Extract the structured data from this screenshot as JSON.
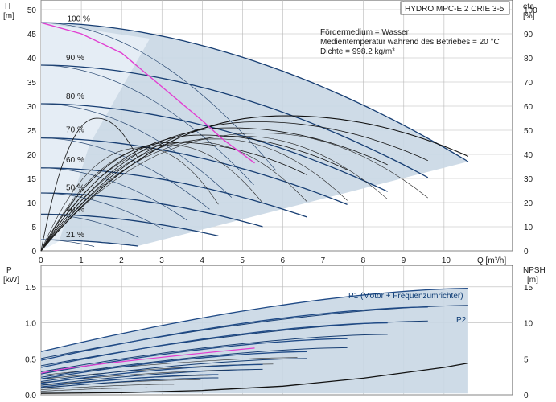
{
  "chart_data": [
    {
      "type": "line",
      "title": "HYDRO MPC-E 2 CRIE 3-5",
      "ylabel": "H",
      "ylabel_unit": "[m]",
      "y2label": "eta",
      "y2label_unit": "[%]",
      "xlabel": "Q [m³/h]",
      "xlim": [
        0,
        11.7
      ],
      "ylim": [
        0,
        52
      ],
      "y2lim": [
        0,
        104
      ],
      "x_ticks": [
        "0",
        "1",
        "2",
        "3",
        "4",
        "5",
        "6",
        "7",
        "8",
        "9",
        "10"
      ],
      "y_ticks": [
        "0",
        "5",
        "10",
        "15",
        "20",
        "25",
        "30",
        "35",
        "40",
        "45",
        "50"
      ],
      "y2_ticks": [
        "0",
        "10",
        "20",
        "30",
        "40",
        "50",
        "60",
        "70",
        "80",
        "90",
        "100"
      ],
      "grid": true,
      "notes": [
        "Fördermedium = Wasser",
        "Medientemperatur während des Betriebes = 20 °C",
        "Dichte = 998.2 kg/m³"
      ],
      "speed_labels": [
        {
          "text": "100 %",
          "x": 0.65,
          "y": 47.6
        },
        {
          "text": "90 %",
          "x": 0.62,
          "y": 39.5
        },
        {
          "text": "80 %",
          "x": 0.62,
          "y": 31.5
        },
        {
          "text": "70 %",
          "x": 0.62,
          "y": 24.6
        },
        {
          "text": "60 %",
          "x": 0.62,
          "y": 18.3
        },
        {
          "text": "50 %",
          "x": 0.62,
          "y": 12.6
        },
        {
          "text": "40 %",
          "x": 0.62,
          "y": 8.1
        },
        {
          "text": "21 %",
          "x": 0.62,
          "y": 2.8
        }
      ],
      "hq_two_pumps": [
        {
          "speed": 100,
          "h0": 47.3,
          "qmax": 10.6,
          "hend": 18.5
        },
        {
          "speed": 90,
          "h0": 38.5,
          "qmax": 9.6,
          "hend": 15.2
        },
        {
          "speed": 80,
          "h0": 30.5,
          "qmax": 8.6,
          "hend": 12.3
        },
        {
          "speed": 70,
          "h0": 23.4,
          "qmax": 7.6,
          "hend": 9.6
        },
        {
          "speed": 60,
          "h0": 17.2,
          "qmax": 6.6,
          "hend": 7.0
        },
        {
          "speed": 50,
          "h0": 12.0,
          "qmax": 5.5,
          "hend": 5.0
        },
        {
          "speed": 40,
          "h0": 7.6,
          "qmax": 4.4,
          "hend": 3.1
        },
        {
          "speed": 21,
          "h0": 2.3,
          "qmax": 2.4,
          "hend": 1.0
        }
      ],
      "system_curve": {
        "x": [
          0,
          1,
          2,
          3,
          4,
          4.5,
          5.3
        ],
        "y": [
          47.3,
          45,
          41,
          34,
          27,
          23.2,
          18.2
        ]
      },
      "eta_curves": [
        {
          "peak_x": 6.1,
          "peak_eta": 56.0,
          "end_x": 10.6
        },
        {
          "peak_x": 5.4,
          "peak_eta": 53.5,
          "end_x": 9.6
        },
        {
          "peak_x": 4.7,
          "peak_eta": 51.0,
          "end_x": 8.6
        },
        {
          "peak_x": 4.0,
          "peak_eta": 48.0,
          "end_x": 7.6
        },
        {
          "peak_x": 3.3,
          "peak_eta": 45.0,
          "end_x": 6.6
        },
        {
          "peak_x": 1.4,
          "peak_eta": 55.0,
          "end_x": 2.4
        }
      ]
    },
    {
      "type": "line",
      "ylabel": "P",
      "ylabel_unit": "[kW]",
      "y2label": "NPSH",
      "y2label_unit": "[m]",
      "xlim": [
        0,
        11.7
      ],
      "ylim": [
        0,
        1.8
      ],
      "y2lim": [
        0,
        18
      ],
      "y_ticks": [
        "0.0",
        "0.5",
        "1.0",
        "1.5"
      ],
      "y2_ticks": [
        "0",
        "5",
        "10",
        "15"
      ],
      "series_labels": [
        "P1 (Motor + Frequenzumrichter)",
        "P2"
      ],
      "p1_curves": [
        {
          "p0": 0.6,
          "pend": 1.48,
          "qmax": 10.6
        },
        {
          "p0": 0.48,
          "pend": 1.22,
          "qmax": 9.6
        },
        {
          "p0": 0.38,
          "pend": 1.0,
          "qmax": 8.6
        },
        {
          "p0": 0.29,
          "pend": 0.78,
          "qmax": 7.6
        },
        {
          "p0": 0.22,
          "pend": 0.6,
          "qmax": 6.6
        },
        {
          "p0": 0.16,
          "pend": 0.42,
          "qmax": 5.5
        },
        {
          "p0": 0.11,
          "pend": 0.28,
          "qmax": 4.4
        }
      ],
      "npsh_x": [
        0,
        2,
        4,
        6,
        8,
        10,
        10.6
      ],
      "npsh_y": [
        0.2,
        0.3,
        0.6,
        1.2,
        2.3,
        3.8,
        4.4
      ]
    }
  ]
}
